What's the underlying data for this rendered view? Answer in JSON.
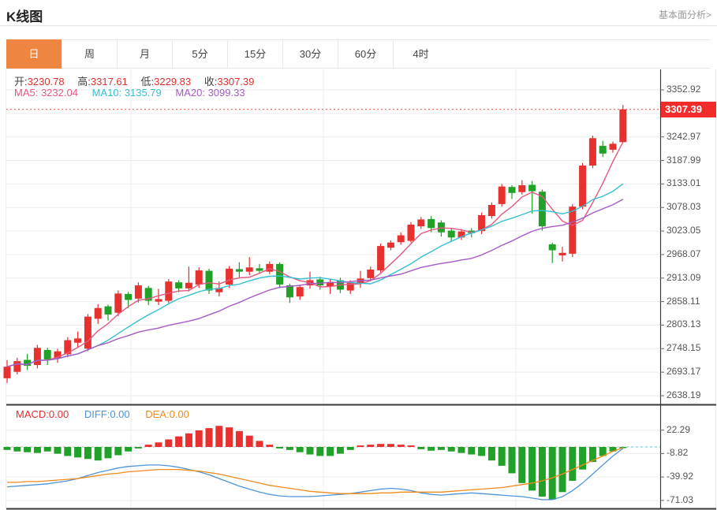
{
  "header": {
    "title": "K线图",
    "link": "基本面分析>"
  },
  "tabs": {
    "items": [
      {
        "label": "日",
        "selected": true
      },
      {
        "label": "周",
        "selected": false
      },
      {
        "label": "月",
        "selected": false
      },
      {
        "label": "5分",
        "selected": false
      },
      {
        "label": "15分",
        "selected": false
      },
      {
        "label": "30分",
        "selected": false
      },
      {
        "label": "60分",
        "selected": false
      },
      {
        "label": "4时",
        "selected": false
      }
    ]
  },
  "legend": {
    "open_label": "开:",
    "open_value": "3230.78",
    "high_label": "高:",
    "high_value": "3317.61",
    "low_label": "低:",
    "low_value": "3229.83",
    "close_label": "收:",
    "close_value": "3307.39",
    "ma5": "MA5: 3232.04",
    "ma10": "MA10: 3135.79",
    "ma20": "MA20: 3099.33"
  },
  "macd_legend": {
    "macd": "MACD:0.00",
    "diff": "DIFF:0.00",
    "dea": "DEA:0.00"
  },
  "price_tag": "3307.39",
  "colors": {
    "up": "#e8302e",
    "down": "#21a127",
    "tag_bg": "#f22b2b",
    "tab_selected": "#ee8540",
    "ma5": "#e5587f",
    "ma10": "#33c0d3",
    "ma20": "#a55bc6",
    "diff": "#4f94d8",
    "dea": "#ef8a1f",
    "value_red": "#e03131",
    "grid": "#ececec",
    "axis": "#3a3a3a",
    "dotted_price_line": "#ef4444",
    "macd_tail_dash": "#7ad0de"
  },
  "chart_data": [
    {
      "type": "candlestick",
      "title": "K线图 (日K)",
      "ylabel": "price",
      "y_ticks_visible": [
        "3352.92",
        "3242.97",
        "3187.99",
        "3133.01",
        "3078.03",
        "3023.05",
        "2968.07",
        "2913.09",
        "2858.11",
        "2803.13",
        "2748.15",
        "2693.17",
        "2638.19"
      ],
      "y_top_tick": 3352.92,
      "y_bottom_tick": 2638.19,
      "current_price": 3307.39,
      "grid": true,
      "legend_position": "top-left",
      "candles_ohlc_format": "[open, close, low, high]",
      "candles": [
        [
          2679,
          2706,
          2668,
          2721
        ],
        [
          2694,
          2719,
          2688,
          2727
        ],
        [
          2722,
          2708,
          2698,
          2736
        ],
        [
          2710,
          2750,
          2702,
          2757
        ],
        [
          2745,
          2723,
          2710,
          2750
        ],
        [
          2726,
          2742,
          2715,
          2748
        ],
        [
          2735,
          2768,
          2728,
          2775
        ],
        [
          2762,
          2772,
          2750,
          2788
        ],
        [
          2748,
          2823,
          2742,
          2829
        ],
        [
          2818,
          2843,
          2806,
          2852
        ],
        [
          2847,
          2828,
          2814,
          2851
        ],
        [
          2832,
          2877,
          2824,
          2884
        ],
        [
          2876,
          2862,
          2843,
          2881
        ],
        [
          2865,
          2896,
          2856,
          2903
        ],
        [
          2890,
          2860,
          2850,
          2895
        ],
        [
          2858,
          2864,
          2850,
          2888
        ],
        [
          2860,
          2905,
          2855,
          2911
        ],
        [
          2903,
          2889,
          2880,
          2908
        ],
        [
          2889,
          2902,
          2882,
          2940
        ],
        [
          2898,
          2931,
          2890,
          2938
        ],
        [
          2930,
          2884,
          2876,
          2935
        ],
        [
          2880,
          2890,
          2870,
          2905
        ],
        [
          2898,
          2935,
          2890,
          2941
        ],
        [
          2934,
          2928,
          2912,
          2950
        ],
        [
          2928,
          2938,
          2920,
          2962
        ],
        [
          2936,
          2930,
          2924,
          2946
        ],
        [
          2928,
          2946,
          2922,
          2952
        ],
        [
          2946,
          2898,
          2890,
          2950
        ],
        [
          2896,
          2868,
          2855,
          2900
        ],
        [
          2870,
          2892,
          2862,
          2898
        ],
        [
          2896,
          2908,
          2888,
          2928
        ],
        [
          2910,
          2896,
          2886,
          2916
        ],
        [
          2894,
          2902,
          2876,
          2910
        ],
        [
          2908,
          2886,
          2878,
          2914
        ],
        [
          2884,
          2902,
          2876,
          2908
        ],
        [
          2900,
          2912,
          2890,
          2930
        ],
        [
          2913,
          2933,
          2906,
          2940
        ],
        [
          2931,
          2988,
          2926,
          2994
        ],
        [
          2984,
          2996,
          2978,
          3001
        ],
        [
          2997,
          3013,
          2991,
          3020
        ],
        [
          3000,
          3038,
          2996,
          3044
        ],
        [
          3034,
          3050,
          3028,
          3056
        ],
        [
          3051,
          3030,
          3020,
          3058
        ],
        [
          3043,
          3020,
          3010,
          3048
        ],
        [
          3024,
          3008,
          3000,
          3030
        ],
        [
          3008,
          3022,
          3002,
          3028
        ],
        [
          3024,
          3018,
          3008,
          3030
        ],
        [
          3023,
          3060,
          3016,
          3066
        ],
        [
          3058,
          3084,
          3052,
          3090
        ],
        [
          3086,
          3127,
          3080,
          3133
        ],
        [
          3126,
          3112,
          3098,
          3130
        ],
        [
          3114,
          3130,
          3108,
          3142
        ],
        [
          3131,
          3116,
          3064,
          3140
        ],
        [
          3115,
          3034,
          3024,
          3120
        ],
        [
          2992,
          2978,
          2948,
          2996
        ],
        [
          2966,
          2972,
          2952,
          2986
        ],
        [
          2970,
          3080,
          2962,
          3086
        ],
        [
          3080,
          3176,
          3074,
          3182
        ],
        [
          3176,
          3240,
          3170,
          3246
        ],
        [
          3222,
          3204,
          3196,
          3234
        ],
        [
          3213,
          3227,
          3206,
          3232
        ],
        [
          3230.78,
          3307.39,
          3229.83,
          3317.61
        ]
      ],
      "ma_windows": [
        5,
        10,
        20
      ]
    },
    {
      "type": "bar",
      "title": "MACD",
      "y_ticks": [
        "22.29",
        "-8.82",
        "-39.92",
        "-71.03"
      ],
      "macd_bars": [
        -4,
        -6,
        -7,
        -8,
        -6,
        -9,
        -12,
        -14,
        -16,
        -18,
        -15,
        -11,
        -6,
        -2,
        3,
        6,
        10,
        14,
        18,
        22,
        25,
        28,
        26,
        21,
        15,
        8,
        3,
        -2,
        -4,
        -7,
        -10,
        -12,
        -12,
        -9,
        -4,
        2,
        3,
        4,
        4,
        3,
        2,
        -3,
        -5,
        -4,
        -6,
        -8,
        -10,
        -12,
        -18,
        -25,
        -35,
        -48,
        -58,
        -66,
        -70,
        -60,
        -45,
        -30,
        -20,
        -12,
        -6,
        -1
      ],
      "diff_line": [
        -53,
        -52,
        -51,
        -50,
        -49,
        -47,
        -45,
        -42,
        -38,
        -34,
        -31,
        -28,
        -26,
        -25,
        -24,
        -24,
        -25,
        -27,
        -30,
        -33,
        -37,
        -42,
        -47,
        -52,
        -56,
        -60,
        -63,
        -65,
        -66,
        -66,
        -66,
        -65,
        -64,
        -63,
        -62,
        -60,
        -58,
        -56,
        -55,
        -56,
        -58,
        -61,
        -63,
        -64,
        -63,
        -62,
        -61,
        -62,
        -63,
        -64,
        -65,
        -66,
        -68,
        -70,
        -70,
        -66,
        -58,
        -48,
        -36,
        -24,
        -12,
        -2
      ],
      "dea_line": [
        -47,
        -47,
        -46,
        -46,
        -45,
        -44,
        -43,
        -42,
        -40,
        -38,
        -36,
        -35,
        -33,
        -32,
        -31,
        -30,
        -30,
        -30,
        -31,
        -32,
        -34,
        -36,
        -39,
        -42,
        -45,
        -48,
        -51,
        -53,
        -55,
        -57,
        -59,
        -60,
        -61,
        -62,
        -62,
        -62,
        -62,
        -61,
        -61,
        -60,
        -60,
        -60,
        -60,
        -60,
        -59,
        -58,
        -57,
        -56,
        -55,
        -54,
        -52,
        -50,
        -48,
        -45,
        -41,
        -36,
        -30,
        -24,
        -18,
        -12,
        -6,
        -1
      ]
    }
  ]
}
